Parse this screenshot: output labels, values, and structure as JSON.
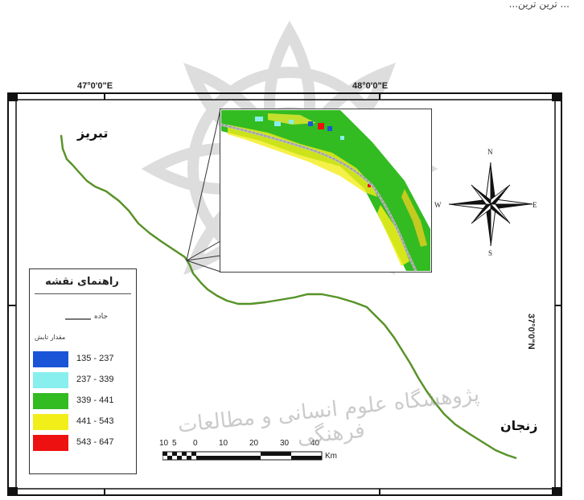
{
  "header_text": "... ترین ترین...",
  "coords": {
    "top_left": "47°0'0\"E",
    "top_right": "48°0'0\"E",
    "right_side": "37°0'0\"N"
  },
  "cities": {
    "tabriz": "تبریز",
    "zanjan": "زنجان"
  },
  "compass": {
    "n": "N",
    "s": "S",
    "e": "E",
    "w": "W"
  },
  "legend": {
    "title": "راهنمای نقشه",
    "road_label": "جاده",
    "range_title": "مقدار تابش",
    "classes": [
      {
        "label": "135 - 237",
        "color": "#1a55d8"
      },
      {
        "label": "237 - 339",
        "color": "#88eeee"
      },
      {
        "label": "339 - 441",
        "color": "#33bb22"
      },
      {
        "label": "441 - 543",
        "color": "#f2ee1a"
      },
      {
        "label": "543 - 647",
        "color": "#ee1111"
      }
    ]
  },
  "scale": {
    "labels": [
      "10",
      "5",
      "0",
      "10",
      "20",
      "30",
      "40"
    ],
    "unit": "Km"
  },
  "watermark": "پژوهشگاه علوم انسانی و مطالعات فرهنگی"
}
